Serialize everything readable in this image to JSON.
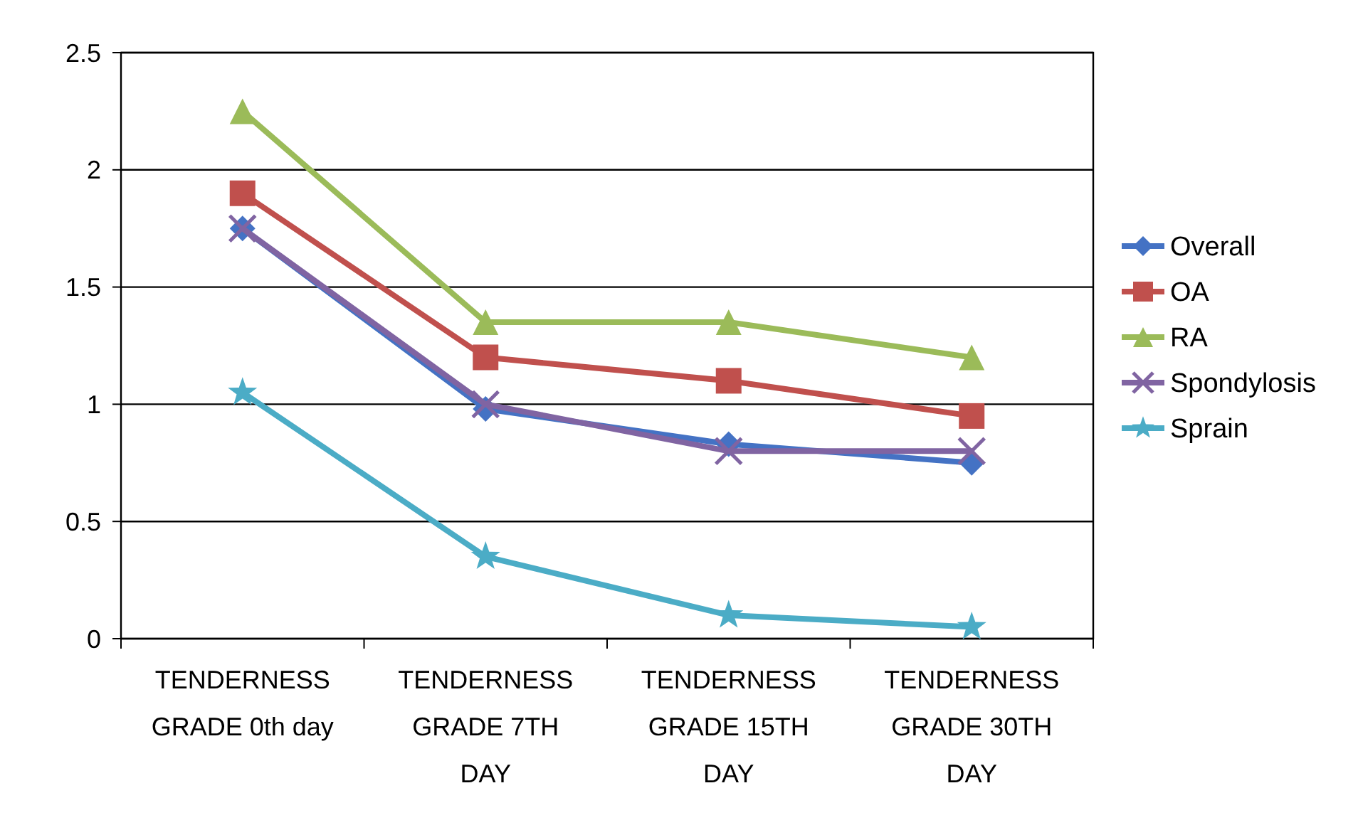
{
  "chart_data": {
    "type": "line",
    "categories": [
      "TENDERNESS GRADE 0th day",
      "TENDERNESS GRADE 7TH DAY",
      "TENDERNESS GRADE 15TH DAY",
      "TENDERNESS GRADE 30TH DAY"
    ],
    "series": [
      {
        "name": "Overall",
        "color": "#4472c4",
        "marker": "diamond",
        "values": [
          1.75,
          0.98,
          0.83,
          0.75
        ]
      },
      {
        "name": "OA",
        "color": "#c0504d",
        "marker": "square",
        "values": [
          1.9,
          1.2,
          1.1,
          0.95
        ]
      },
      {
        "name": "RA",
        "color": "#9bbb59",
        "marker": "triangle",
        "values": [
          2.25,
          1.35,
          1.35,
          1.2
        ]
      },
      {
        "name": "Spondylosis",
        "color": "#8064a2",
        "marker": "cross",
        "values": [
          1.75,
          1.0,
          0.8,
          0.8
        ]
      },
      {
        "name": "Sprain",
        "color": "#4bacc6",
        "marker": "star",
        "values": [
          1.05,
          0.35,
          0.1,
          0.05
        ]
      }
    ],
    "ylim": [
      0,
      2.5
    ],
    "yticks": [
      0,
      0.5,
      1,
      1.5,
      2,
      2.5
    ],
    "grid": "y",
    "legend": "right",
    "line_style": "solid"
  }
}
